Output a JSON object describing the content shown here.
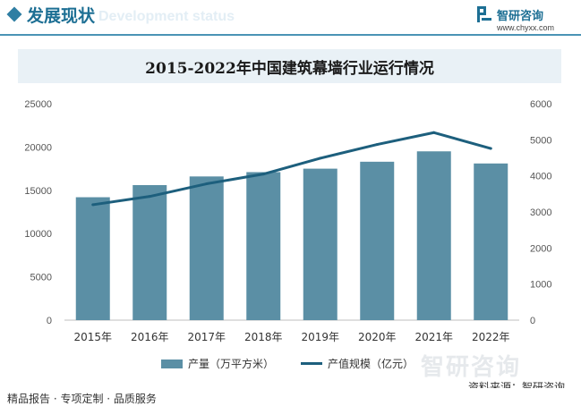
{
  "header": {
    "section_title": "发展现状",
    "section_subtitle": "Development status",
    "brand_name": "智研咨询",
    "brand_url": "www.chyxx.com"
  },
  "chart_data": {
    "type": "bar",
    "title": "2015-2022年中国建筑幕墙行业运行情况",
    "categories": [
      "2015年",
      "2016年",
      "2017年",
      "2018年",
      "2019年",
      "2020年",
      "2021年",
      "2022年"
    ],
    "series": [
      {
        "name": "产量（万平方米）",
        "type": "bar",
        "axis": "left",
        "color": "#5b8fa5",
        "values": [
          14200,
          15600,
          16600,
          17100,
          17500,
          18300,
          19500,
          18100
        ]
      },
      {
        "name": "产值规模（亿元）",
        "type": "line",
        "axis": "right",
        "color": "#1d5f7d",
        "values": [
          3200,
          3430,
          3780,
          4050,
          4490,
          4870,
          5200,
          4760
        ]
      }
    ],
    "y_left": {
      "min": 0,
      "max": 25000,
      "ticks": [
        "0",
        "5000",
        "10000",
        "15000",
        "20000",
        "25000"
      ]
    },
    "y_right": {
      "min": 0,
      "max": 6000,
      "ticks": [
        "0",
        "1000",
        "2000",
        "3000",
        "4000",
        "5000",
        "6000"
      ]
    },
    "grid": false,
    "legend_position": "bottom"
  },
  "legend": {
    "bar_label": "产量（万平方米）",
    "line_label": "产值规模（亿元）"
  },
  "source": "资料来源：智研咨询",
  "watermark": "智研咨询",
  "footer": "精品报告 · 专项定制 · 品质服务"
}
